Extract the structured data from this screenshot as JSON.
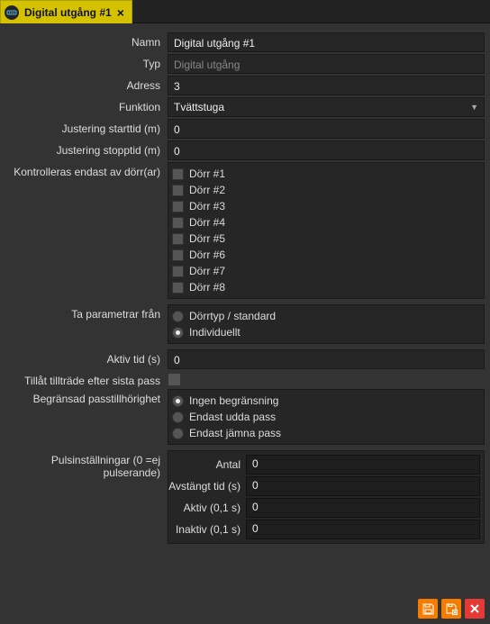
{
  "tab": {
    "title": "Digital utgång #1"
  },
  "fields": {
    "namn_label": "Namn",
    "namn_value": "Digital utgång #1",
    "typ_label": "Typ",
    "typ_value": "Digital utgång",
    "adress_label": "Adress",
    "adress_value": "3",
    "funktion_label": "Funktion",
    "funktion_value": "Tvättstuga",
    "just_start_label": "Justering starttid (m)",
    "just_start_value": "0",
    "just_stop_label": "Justering stopptid (m)",
    "just_stop_value": "0",
    "kontroll_label": "Kontrolleras endast av dörr(ar)",
    "doors": [
      "Dörr #1",
      "Dörr #2",
      "Dörr #3",
      "Dörr #4",
      "Dörr #5",
      "Dörr #6",
      "Dörr #7",
      "Dörr #8"
    ],
    "param_label": "Ta parametrar från",
    "param_opts": [
      "Dörrtyp / standard",
      "Individuellt"
    ],
    "param_selected": 1,
    "aktivtid_label": "Aktiv tid (s)",
    "aktivtid_value": "0",
    "tillat_label": "Tillåt tillträde efter sista pass",
    "begrans_label": "Begränsad passtillhörighet",
    "begrans_opts": [
      "Ingen begränsning",
      "Endast udda pass",
      "Endast jämna pass"
    ],
    "begrans_selected": 0,
    "puls_label": "Pulsinställningar (0 =ej pulserande)",
    "puls": {
      "antal_label": "Antal",
      "antal_value": "0",
      "avstangt_label": "Avstängt tid (s)",
      "avstangt_value": "0",
      "aktiv_label": "Aktiv (0,1 s)",
      "aktiv_value": "0",
      "inaktiv_label": "Inaktiv (0,1 s)",
      "inaktiv_value": "0"
    }
  }
}
